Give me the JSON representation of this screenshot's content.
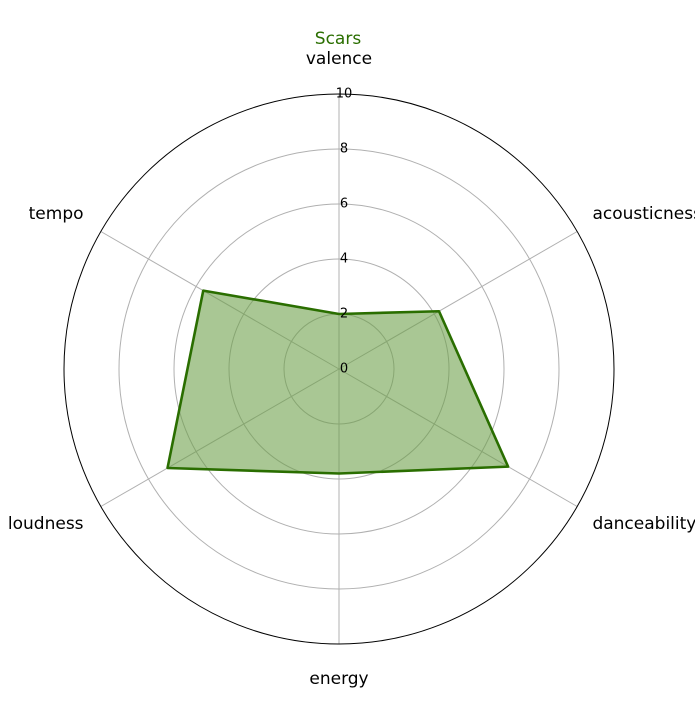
{
  "chart_data": {
    "type": "radar",
    "title": "Scars",
    "axes": [
      "valence",
      "acousticness",
      "danceability",
      "energy",
      "loudness",
      "tempo"
    ],
    "series": [
      {
        "name": "Scars",
        "values": [
          2,
          4.2,
          7.1,
          3.8,
          7.2,
          5.7
        ]
      }
    ],
    "rlim": [
      0,
      10
    ],
    "rticks": [
      "0",
      "2",
      "4",
      "6",
      "8",
      "10"
    ],
    "grid": true,
    "colors": {
      "line": "#2a6e00",
      "fill": "#6a9e47",
      "title": "#2a6e00",
      "grid": "#b0b0b0",
      "frame": "#000000"
    }
  }
}
